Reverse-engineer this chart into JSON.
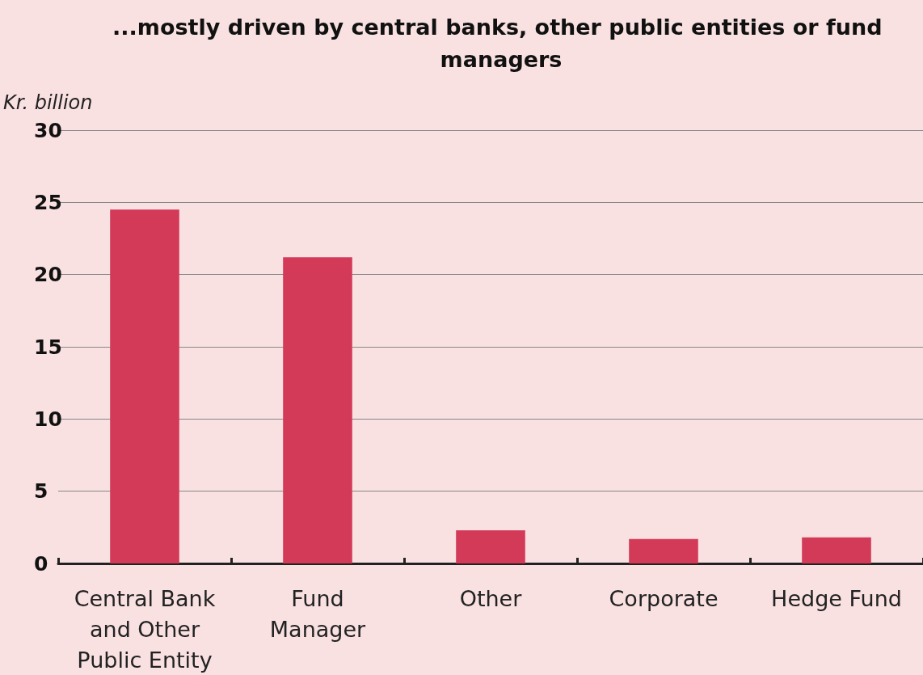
{
  "chart_data": {
    "type": "bar",
    "title": "...mostly driven by central banks, other public entities or fund managers",
    "ylabel": "Kr. billion",
    "categories": [
      "Central Bank\nand Other\nPublic Entity",
      "Fund\nManager",
      "Other",
      "Corporate",
      "Hedge Fund"
    ],
    "values": [
      24.5,
      21.2,
      2.3,
      1.7,
      1.8
    ],
    "color": "#d33a58",
    "ylim": [
      0,
      30
    ],
    "yticks": [
      0,
      5,
      10,
      15,
      20,
      25,
      30
    ],
    "grid": "y"
  }
}
